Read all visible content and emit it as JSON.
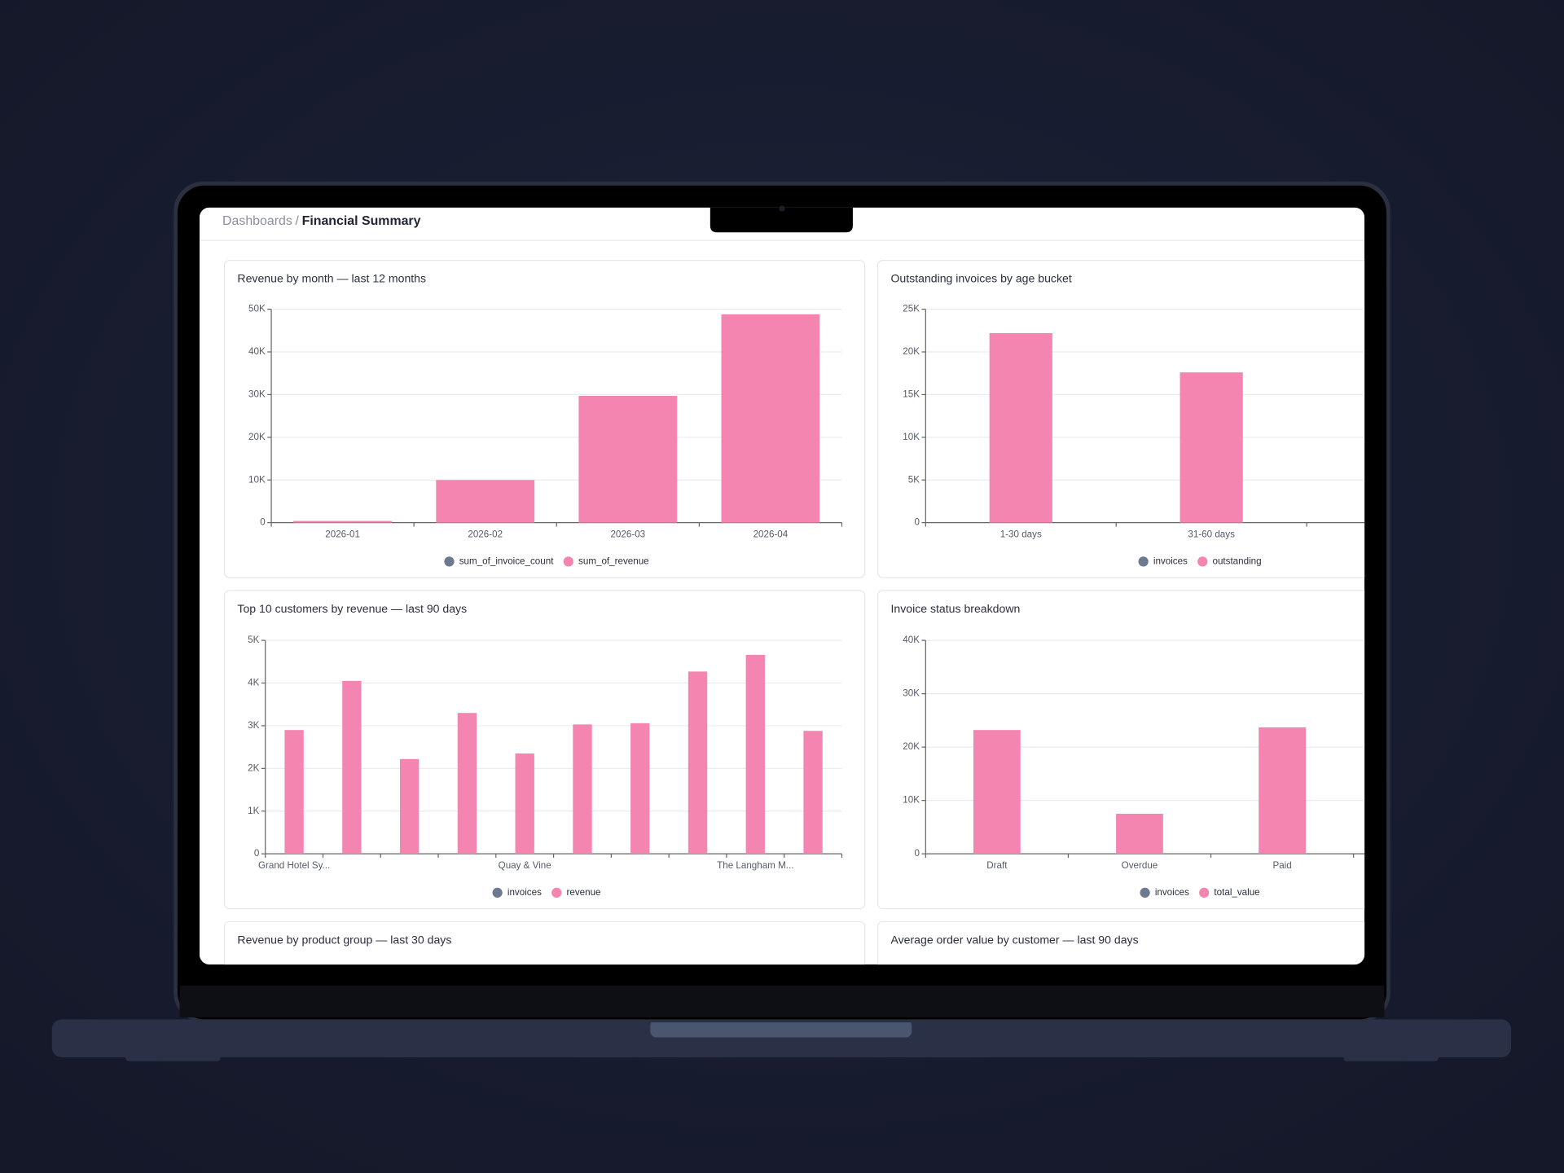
{
  "breadcrumb": {
    "parent": "Dashboards",
    "separator": "/",
    "current": "Financial Summary"
  },
  "chart_data": [
    {
      "type": "bar",
      "title": "Revenue by month — last 12 months",
      "categories": [
        "2026-01",
        "2026-02",
        "2026-03",
        "2026-04"
      ],
      "series": [
        {
          "name": "sum_of_invoice_count",
          "color": "#6b7a90",
          "values": [
            null,
            null,
            null,
            null
          ]
        },
        {
          "name": "sum_of_revenue",
          "color": "#f484b0",
          "values": [
            400,
            10000,
            29700,
            48800
          ]
        }
      ],
      "ylim": [
        0,
        50000
      ],
      "yticks": [
        0,
        {
          "value": 10000,
          "label": "10K"
        },
        {
          "value": 20000,
          "label": "20K"
        },
        {
          "value": 30000,
          "label": "30K"
        },
        {
          "value": 40000,
          "label": "40K"
        },
        {
          "value": 50000,
          "label": "50K"
        }
      ],
      "grid": true
    },
    {
      "type": "bar",
      "title": "Outstanding invoices by age bucket",
      "categories": [
        "1-30 days",
        "31-60 days"
      ],
      "series": [
        {
          "name": "invoices",
          "color": "#6b7a90",
          "values": [
            null,
            null
          ]
        },
        {
          "name": "outstanding",
          "color": "#f484b0",
          "values": [
            22200,
            17600
          ]
        }
      ],
      "ylim": [
        0,
        25000
      ],
      "yticks": [
        0,
        {
          "value": 5000,
          "label": "5K"
        },
        {
          "value": 10000,
          "label": "10K"
        },
        {
          "value": 15000,
          "label": "15K"
        },
        {
          "value": 20000,
          "label": "20K"
        },
        {
          "value": 25000,
          "label": "25K"
        }
      ],
      "grid": true
    },
    {
      "type": "bar",
      "title": "Top 10 customers by revenue — last 90 days",
      "categories": [
        "Grand Hotel Sy...",
        null,
        null,
        null,
        "Quay & Vine",
        null,
        null,
        null,
        "The Langham M...",
        null
      ],
      "series": [
        {
          "name": "invoices",
          "color": "#6b7a90",
          "values": [
            null,
            null,
            null,
            null,
            null,
            null,
            null,
            null,
            null,
            null
          ]
        },
        {
          "name": "revenue",
          "color": "#f484b0",
          "values": [
            2900,
            4050,
            2220,
            3300,
            2350,
            3030,
            3060,
            4270,
            4660,
            2880
          ]
        }
      ],
      "ylim": [
        0,
        5000
      ],
      "yticks": [
        0,
        {
          "value": 1000,
          "label": "1K"
        },
        {
          "value": 2000,
          "label": "2K"
        },
        {
          "value": 3000,
          "label": "3K"
        },
        {
          "value": 4000,
          "label": "4K"
        },
        {
          "value": 5000,
          "label": "5K"
        }
      ],
      "grid": true
    },
    {
      "type": "bar",
      "title": "Invoice status breakdown",
      "categories": [
        "Draft",
        "Overdue",
        "Paid"
      ],
      "series": [
        {
          "name": "invoices",
          "color": "#6b7a90",
          "values": [
            null,
            null,
            null
          ]
        },
        {
          "name": "total_value",
          "color": "#f484b0",
          "values": [
            23200,
            7500,
            23700
          ]
        }
      ],
      "ylim": [
        0,
        40000
      ],
      "yticks": [
        0,
        {
          "value": 10000,
          "label": "10K"
        },
        {
          "value": 20000,
          "label": "20K"
        },
        {
          "value": 30000,
          "label": "30K"
        },
        {
          "value": 40000,
          "label": "40K"
        }
      ],
      "grid": true
    }
  ],
  "more_panels": [
    {
      "title": "Revenue by product group — last 30 days"
    },
    {
      "title": "Average order value by customer — last 90 days"
    }
  ]
}
